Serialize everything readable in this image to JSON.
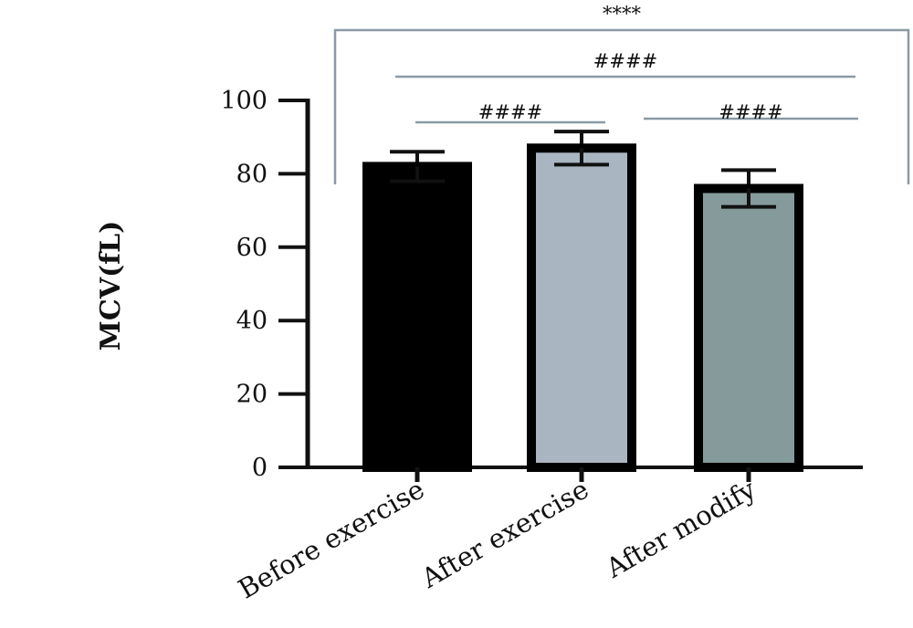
{
  "chart_data": {
    "type": "bar",
    "title": "",
    "xlabel": "",
    "ylabel": "MCV(fL)",
    "ylim": [
      0,
      100
    ],
    "yticks": [
      0,
      20,
      40,
      60,
      80,
      100
    ],
    "grid": false,
    "categories": [
      "Before exercise",
      "After exercise",
      "After modify"
    ],
    "values": [
      82,
      87,
      76
    ],
    "errors": [
      4,
      4.5,
      5
    ],
    "colors": [
      "#000000",
      "#a9b6c2",
      "#859a9b"
    ],
    "edge_color": "#000000",
    "significance": [
      {
        "from": 0,
        "to": 2,
        "label": "****",
        "style": "bracket"
      },
      {
        "from": 0,
        "to": 2,
        "label": "####",
        "style": "line"
      },
      {
        "from": 0,
        "to": 1,
        "label": "####",
        "style": "line"
      },
      {
        "from": 1,
        "to": 2,
        "label": "####",
        "style": "line"
      }
    ]
  }
}
